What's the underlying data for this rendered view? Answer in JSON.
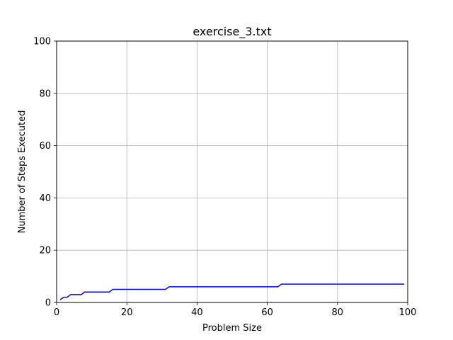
{
  "chart_data": {
    "type": "line",
    "title": "exercise_3.txt",
    "xlabel": "Problem Size",
    "ylabel": "Number of Steps Executed",
    "xlim": [
      0,
      100
    ],
    "ylim": [
      0,
      100
    ],
    "xticks": [
      0,
      20,
      40,
      60,
      80,
      100
    ],
    "yticks": [
      0,
      20,
      40,
      60,
      80,
      100
    ],
    "grid": true,
    "series": [
      {
        "color": "#0000ff",
        "x": [
          1,
          2,
          3,
          4,
          5,
          6,
          7,
          8,
          9,
          10,
          11,
          12,
          13,
          14,
          15,
          16,
          17,
          18,
          19,
          20,
          21,
          22,
          23,
          24,
          25,
          26,
          27,
          28,
          29,
          30,
          31,
          32,
          33,
          34,
          35,
          36,
          37,
          38,
          39,
          40,
          41,
          42,
          43,
          44,
          45,
          46,
          47,
          48,
          49,
          50,
          51,
          52,
          53,
          54,
          55,
          56,
          57,
          58,
          59,
          60,
          61,
          62,
          63,
          64,
          65,
          66,
          67,
          68,
          69,
          70,
          71,
          72,
          73,
          74,
          75,
          76,
          77,
          78,
          79,
          80,
          81,
          82,
          83,
          84,
          85,
          86,
          87,
          88,
          89,
          90,
          91,
          92,
          93,
          94,
          95,
          96,
          97,
          98,
          99
        ],
        "y": [
          1,
          2,
          2,
          3,
          3,
          3,
          3,
          4,
          4,
          4,
          4,
          4,
          4,
          4,
          4,
          5,
          5,
          5,
          5,
          5,
          5,
          5,
          5,
          5,
          5,
          5,
          5,
          5,
          5,
          5,
          5,
          6,
          6,
          6,
          6,
          6,
          6,
          6,
          6,
          6,
          6,
          6,
          6,
          6,
          6,
          6,
          6,
          6,
          6,
          6,
          6,
          6,
          6,
          6,
          6,
          6,
          6,
          6,
          6,
          6,
          6,
          6,
          6,
          7,
          7,
          7,
          7,
          7,
          7,
          7,
          7,
          7,
          7,
          7,
          7,
          7,
          7,
          7,
          7,
          7,
          7,
          7,
          7,
          7,
          7,
          7,
          7,
          7,
          7,
          7,
          7,
          7,
          7,
          7,
          7,
          7,
          7,
          7,
          7
        ]
      }
    ]
  }
}
